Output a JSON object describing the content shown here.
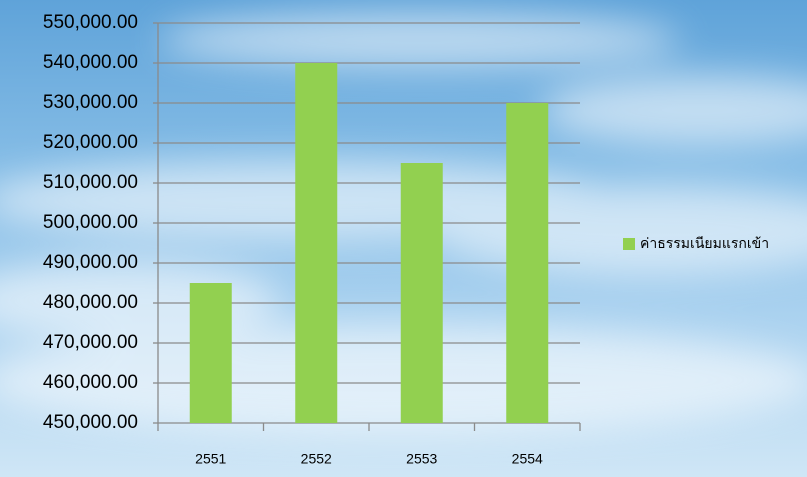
{
  "chart_data": {
    "type": "bar",
    "categories": [
      "2551",
      "2552",
      "2553",
      "2554"
    ],
    "series": [
      {
        "name": "ค่าธรรมเนียมแรกเข้า",
        "color": "#92d050",
        "values": [
          485000,
          540000,
          515000,
          530000
        ]
      }
    ],
    "ylim": [
      450000,
      550000
    ],
    "yticks": [
      {
        "value": 450000,
        "label": "450,000.00"
      },
      {
        "value": 460000,
        "label": "460,000.00"
      },
      {
        "value": 470000,
        "label": "470,000.00"
      },
      {
        "value": 480000,
        "label": "480,000.00"
      },
      {
        "value": 490000,
        "label": "490,000.00"
      },
      {
        "value": 500000,
        "label": "500,000.00"
      },
      {
        "value": 510000,
        "label": "510,000.00"
      },
      {
        "value": 520000,
        "label": "520,000.00"
      },
      {
        "value": 530000,
        "label": "530,000.00"
      },
      {
        "value": 540000,
        "label": "540,000.00"
      },
      {
        "value": 550000,
        "label": "550,000.00"
      }
    ],
    "grid": true,
    "legend": "right"
  }
}
